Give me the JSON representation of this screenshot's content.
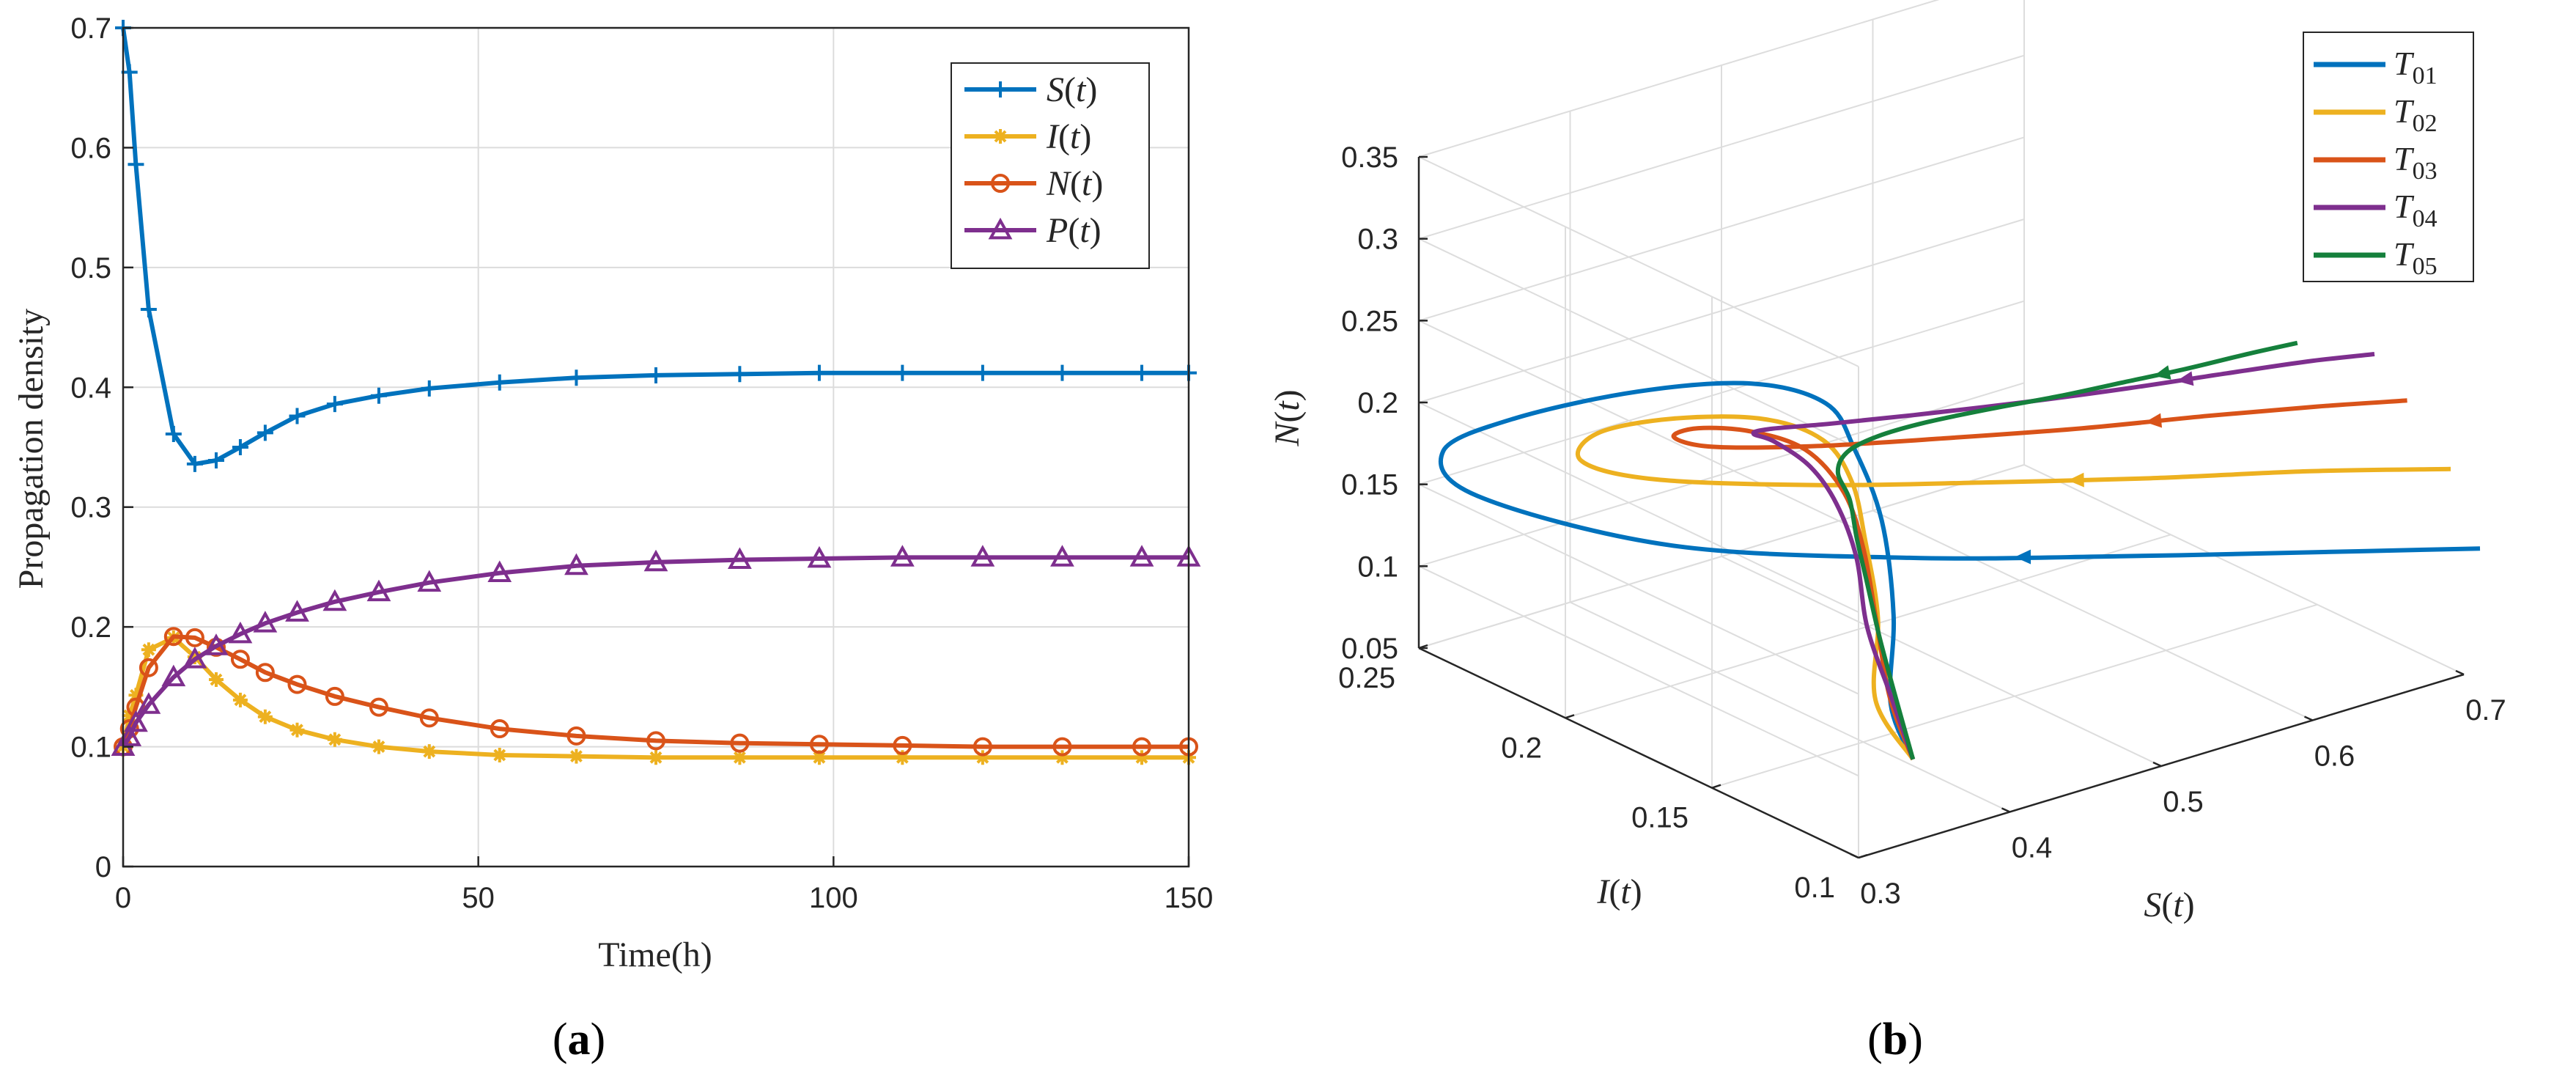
{
  "chart_data": [
    {
      "type": "line",
      "panel_label": "(a)",
      "title": "",
      "xlabel": "Time(h)",
      "ylabel": "Propagation density",
      "xlim": [
        0,
        150
      ],
      "ylim": [
        0,
        0.7
      ],
      "xticks": [
        "0",
        "50",
        "100",
        "150"
      ],
      "yticks": [
        "0",
        "0.1",
        "0.2",
        "0.3",
        "0.4",
        "0.5",
        "0.6",
        "0.7"
      ],
      "grid": true,
      "legend_position": "top-right",
      "series": [
        {
          "name": "S(t)",
          "color": "#0072BD",
          "marker": "plus",
          "x": [
            0,
            0.9,
            1.8,
            3.6,
            7.1,
            10.1,
            13.1,
            16.5,
            20.0,
            24.5,
            29.8,
            36.0,
            43.1,
            53.0,
            63.8,
            75.0,
            86.8,
            98.0,
            109.7,
            121.0,
            132.2,
            143.4,
            150
          ],
          "y": [
            0.7,
            0.663,
            0.586,
            0.465,
            0.361,
            0.336,
            0.339,
            0.35,
            0.362,
            0.376,
            0.386,
            0.393,
            0.399,
            0.404,
            0.408,
            0.41,
            0.411,
            0.412,
            0.412,
            0.412,
            0.412,
            0.412,
            0.412
          ]
        },
        {
          "name": "I(t)",
          "color": "#EDB120",
          "marker": "star",
          "x": [
            0,
            0.9,
            1.8,
            3.6,
            7.1,
            10.1,
            13.1,
            16.5,
            20.0,
            24.5,
            29.8,
            36.0,
            43.1,
            53.0,
            63.8,
            75.0,
            86.8,
            98.0,
            109.7,
            121.0,
            132.2,
            143.4,
            150
          ],
          "y": [
            0.1,
            0.126,
            0.143,
            0.181,
            0.191,
            0.175,
            0.156,
            0.139,
            0.125,
            0.114,
            0.106,
            0.1,
            0.096,
            0.093,
            0.092,
            0.091,
            0.091,
            0.091,
            0.091,
            0.091,
            0.091,
            0.091,
            0.091
          ]
        },
        {
          "name": "N(t)",
          "color": "#D95319",
          "marker": "circle",
          "x": [
            0,
            0.9,
            1.8,
            3.6,
            7.1,
            10.1,
            13.1,
            16.5,
            20.0,
            24.5,
            29.8,
            36.0,
            43.1,
            53.0,
            63.8,
            75.0,
            86.8,
            98.0,
            109.7,
            121.0,
            132.2,
            143.4,
            150
          ],
          "y": [
            0.1,
            0.115,
            0.133,
            0.166,
            0.192,
            0.191,
            0.183,
            0.173,
            0.162,
            0.152,
            0.142,
            0.133,
            0.124,
            0.115,
            0.109,
            0.105,
            0.103,
            0.102,
            0.101,
            0.1,
            0.1,
            0.1,
            0.1
          ]
        },
        {
          "name": "P(t)",
          "color": "#7E2F8E",
          "marker": "triangle",
          "x": [
            0,
            0.9,
            1.8,
            3.6,
            7.1,
            10.1,
            13.1,
            16.5,
            20.0,
            24.5,
            29.8,
            36.0,
            43.1,
            53.0,
            63.8,
            75.0,
            86.8,
            98.0,
            109.7,
            121.0,
            132.2,
            143.4,
            150
          ],
          "y": [
            0.1,
            0.108,
            0.12,
            0.135,
            0.158,
            0.173,
            0.184,
            0.194,
            0.203,
            0.212,
            0.221,
            0.229,
            0.237,
            0.245,
            0.251,
            0.254,
            0.256,
            0.257,
            0.258,
            0.258,
            0.258,
            0.258,
            0.258
          ]
        }
      ]
    },
    {
      "type": "line3d",
      "panel_label": "(b)",
      "title": "",
      "xlabel": "S(t)",
      "ylabel": "I(t)",
      "zlabel": "N(t)",
      "xlim": [
        0.3,
        0.7
      ],
      "ylim": [
        0.1,
        0.25
      ],
      "zlim": [
        0.05,
        0.35
      ],
      "xticks": [
        "0.3",
        "0.4",
        "0.5",
        "0.6",
        "0.7"
      ],
      "yticks": [
        "0.1",
        "0.15",
        "0.2",
        "0.25"
      ],
      "zticks": [
        "0.05",
        "0.1",
        "0.15",
        "0.2",
        "0.25",
        "0.3",
        "0.35"
      ],
      "grid": true,
      "legend_position": "top-right",
      "series": [
        {
          "name": "T01",
          "color": "#0072BD",
          "S": [
            0.336,
            0.36,
            0.42,
            0.48,
            0.52,
            0.54,
            0.52,
            0.46,
            0.38,
            0.32,
            0.3,
            0.35,
            0.45,
            0.55,
            0.65,
            0.73
          ],
          "I": [
            0.1,
            0.12,
            0.15,
            0.185,
            0.215,
            0.235,
            0.25,
            0.258,
            0.259,
            0.252,
            0.23,
            0.19,
            0.16,
            0.14,
            0.122,
            0.11
          ],
          "N": [
            0.1,
            0.11,
            0.122,
            0.133,
            0.14,
            0.145,
            0.15,
            0.155,
            0.16,
            0.163,
            0.16,
            0.15,
            0.14,
            0.13,
            0.12,
            0.11
          ]
        },
        {
          "name": "T02",
          "color": "#EDB120",
          "S": [
            0.336,
            0.35,
            0.4,
            0.44,
            0.47,
            0.48,
            0.46,
            0.41,
            0.36,
            0.33,
            0.35,
            0.42,
            0.5,
            0.58,
            0.66,
            0.73
          ],
          "I": [
            0.1,
            0.12,
            0.145,
            0.17,
            0.19,
            0.205,
            0.215,
            0.22,
            0.22,
            0.21,
            0.195,
            0.175,
            0.16,
            0.145,
            0.132,
            0.12
          ],
          "N": [
            0.1,
            0.115,
            0.13,
            0.145,
            0.155,
            0.165,
            0.175,
            0.185,
            0.19,
            0.19,
            0.186,
            0.18,
            0.172,
            0.165,
            0.158,
            0.15
          ]
        },
        {
          "name": "T03",
          "color": "#D95319",
          "S": [
            0.336,
            0.35,
            0.38,
            0.41,
            0.43,
            0.43,
            0.41,
            0.38,
            0.36,
            0.37,
            0.42,
            0.49,
            0.56,
            0.63,
            0.69,
            0.74
          ],
          "I": [
            0.1,
            0.115,
            0.135,
            0.155,
            0.172,
            0.185,
            0.193,
            0.196,
            0.194,
            0.186,
            0.176,
            0.166,
            0.158,
            0.151,
            0.145,
            0.14
          ],
          "N": [
            0.1,
            0.12,
            0.14,
            0.16,
            0.175,
            0.19,
            0.2,
            0.208,
            0.21,
            0.208,
            0.203,
            0.197,
            0.19,
            0.184,
            0.178,
            0.172
          ]
        },
        {
          "name": "T04",
          "color": "#7E2F8E",
          "S": [
            0.336,
            0.345,
            0.36,
            0.38,
            0.39,
            0.39,
            0.38,
            0.37,
            0.38,
            0.41,
            0.46,
            0.52,
            0.58,
            0.64,
            0.69,
            0.73
          ],
          "I": [
            0.1,
            0.112,
            0.128,
            0.142,
            0.154,
            0.163,
            0.17,
            0.172,
            0.171,
            0.167,
            0.162,
            0.157,
            0.153,
            0.15,
            0.148,
            0.146
          ],
          "N": [
            0.1,
            0.125,
            0.15,
            0.175,
            0.195,
            0.21,
            0.222,
            0.228,
            0.229,
            0.227,
            0.223,
            0.218,
            0.213,
            0.208,
            0.203,
            0.198
          ]
        },
        {
          "name": "T05",
          "color": "#15803C",
          "S": [
            0.336,
            0.34,
            0.345,
            0.35,
            0.355,
            0.36,
            0.36,
            0.37,
            0.39,
            0.42,
            0.46,
            0.5,
            0.54,
            0.58,
            0.62,
            0.65
          ],
          "I": [
            0.1,
            0.108,
            0.116,
            0.123,
            0.129,
            0.134,
            0.138,
            0.14,
            0.14,
            0.139,
            0.137,
            0.135,
            0.134,
            0.133,
            0.132,
            0.131
          ],
          "N": [
            0.1,
            0.13,
            0.158,
            0.185,
            0.205,
            0.223,
            0.236,
            0.244,
            0.248,
            0.249,
            0.248,
            0.246,
            0.244,
            0.242,
            0.241,
            0.24
          ]
        }
      ]
    }
  ]
}
